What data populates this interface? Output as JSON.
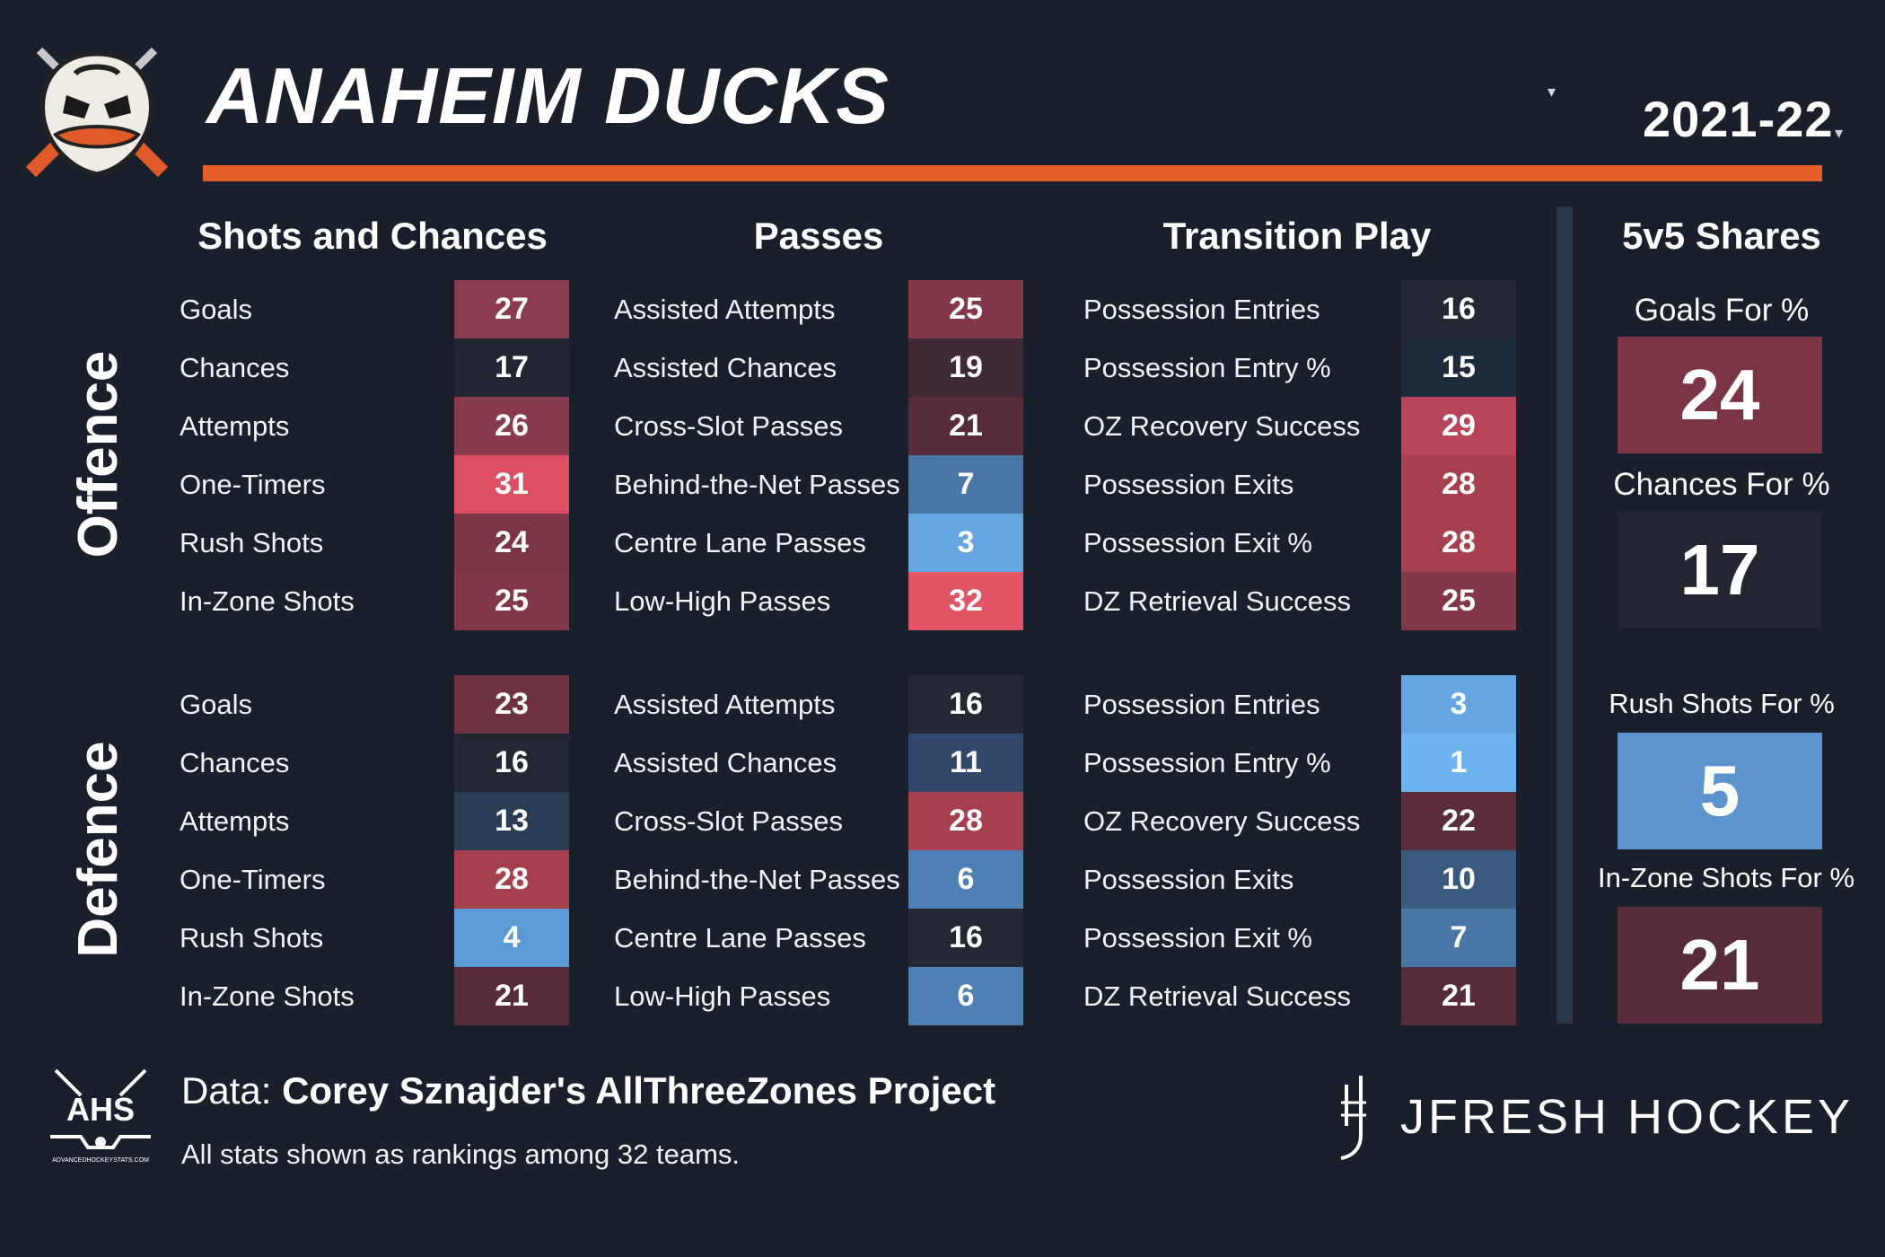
{
  "header": {
    "team": "ANAHEIM DUCKS",
    "season": "2021-22",
    "team_caret": "▾",
    "season_caret": "▾",
    "accent_color": "#e55e2a"
  },
  "columns": {
    "shots": "Shots and Chances",
    "passes": "Passes",
    "transition": "Transition Play",
    "shares": "5v5 Shares"
  },
  "sections": {
    "offence": "Offence",
    "defence": "Defence"
  },
  "offence": {
    "shots": [
      {
        "label": "Goals",
        "value": "27",
        "color": "#8a3b50"
      },
      {
        "label": "Chances",
        "value": "17",
        "color": "#232630"
      },
      {
        "label": "Attempts",
        "value": "26",
        "color": "#8a3a4d"
      },
      {
        "label": "One-Timers",
        "value": "31",
        "color": "#dd4f62"
      },
      {
        "label": "Rush Shots",
        "value": "24",
        "color": "#7b3544"
      },
      {
        "label": "In-Zone Shots",
        "value": "25",
        "color": "#83384a"
      }
    ],
    "passes": [
      {
        "label": "Assisted Attempts",
        "value": "25",
        "color": "#83384a"
      },
      {
        "label": "Assisted Chances",
        "value": "19",
        "color": "#3d2a35"
      },
      {
        "label": "Cross-Slot Passes",
        "value": "21",
        "color": "#562c3a"
      },
      {
        "label": "Behind-the-Net Passes",
        "value": "7",
        "color": "#4a76a5"
      },
      {
        "label": "Centre Lane Passes",
        "value": "3",
        "color": "#64a6e0"
      },
      {
        "label": "Low-High Passes",
        "value": "32",
        "color": "#e35466"
      }
    ],
    "transition": [
      {
        "label": "Possession Entries",
        "value": "16",
        "color": "#232833"
      },
      {
        "label": "Possession Entry %",
        "value": "15",
        "color": "#1e2b3b"
      },
      {
        "label": "OZ Recovery Success",
        "value": "29",
        "color": "#b9455a"
      },
      {
        "label": "Possession Exits",
        "value": "28",
        "color": "#a6404f"
      },
      {
        "label": "Possession Exit %",
        "value": "28",
        "color": "#a6404f"
      },
      {
        "label": "DZ Retrieval Success",
        "value": "25",
        "color": "#83384a"
      }
    ]
  },
  "defence": {
    "shots": [
      {
        "label": "Goals",
        "value": "23",
        "color": "#6e3240"
      },
      {
        "label": "Chances",
        "value": "16",
        "color": "#232833"
      },
      {
        "label": "Attempts",
        "value": "13",
        "color": "#2b3d55"
      },
      {
        "label": "One-Timers",
        "value": "28",
        "color": "#a6404f"
      },
      {
        "label": "Rush Shots",
        "value": "4",
        "color": "#5c9ad5"
      },
      {
        "label": "In-Zone Shots",
        "value": "21",
        "color": "#562c3a"
      }
    ],
    "passes": [
      {
        "label": "Assisted Attempts",
        "value": "16",
        "color": "#232833"
      },
      {
        "label": "Assisted Chances",
        "value": "11",
        "color": "#32486a"
      },
      {
        "label": "Cross-Slot Passes",
        "value": "28",
        "color": "#a6404f"
      },
      {
        "label": "Behind-the-Net Passes",
        "value": "6",
        "color": "#4f80b5"
      },
      {
        "label": "Centre Lane Passes",
        "value": "16",
        "color": "#232833"
      },
      {
        "label": "Low-High Passes",
        "value": "6",
        "color": "#4f80b5"
      }
    ],
    "transition": [
      {
        "label": "Possession Entries",
        "value": "3",
        "color": "#64a6e0"
      },
      {
        "label": "Possession Entry %",
        "value": "1",
        "color": "#6cb4f0"
      },
      {
        "label": "OZ Recovery Success",
        "value": "22",
        "color": "#5b2d3b"
      },
      {
        "label": "Possession Exits",
        "value": "10",
        "color": "#3a5a80"
      },
      {
        "label": "Possession Exit %",
        "value": "7",
        "color": "#4a76a5"
      },
      {
        "label": "DZ Retrieval Success",
        "value": "21",
        "color": "#562c3a"
      }
    ]
  },
  "shares": [
    {
      "label": "Goals For %",
      "value": "24",
      "color": "#7b3544"
    },
    {
      "label": "Chances For %",
      "value": "17",
      "color": "#232630"
    },
    {
      "label": "Rush Shots For %",
      "value": "5",
      "color": "#5d94cf"
    },
    {
      "label": "In-Zone Shots For %",
      "value": "21",
      "color": "#562c3a"
    }
  ],
  "footer": {
    "source_prefix": "Data: ",
    "source_name": "Corey Sznajder's AllThreeZones Project",
    "note": "All stats shown as rankings among 32 teams.",
    "ahs_logo_text": "AHS",
    "ahs_logo_caption": "ADVANCEDHOCKEYSTATS.COM",
    "brand": "JFRESH HOCKEY"
  },
  "icons": {
    "team_logo": "ducks-logo-icon",
    "ahs_logo": "ahs-logo-icon",
    "brand_mark": "jfresh-mark-icon"
  }
}
